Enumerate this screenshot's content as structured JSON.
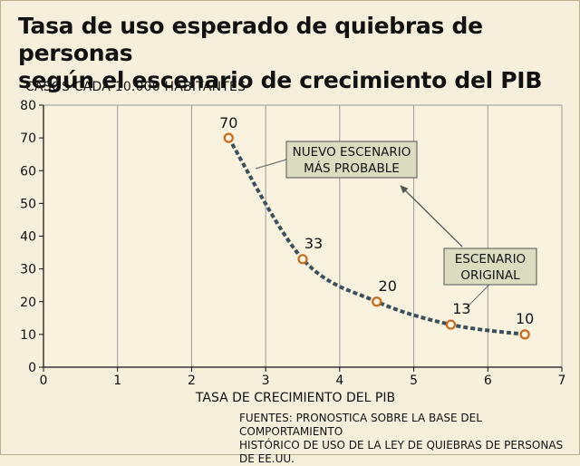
{
  "header": {
    "title_line1": "Tasa de uso esperado de quiebras de personas",
    "title_line2": "según el escenario de crecimiento del PIB",
    "units": "CASOS CADA 10.000 HABITANTES"
  },
  "footer": {
    "source_line1": "FUENTES: PRONOSTICA SOBRE LA BASE DEL COMPORTAMIENTO",
    "source_line2": "HISTÓRICO DE USO DE LA LEY DE QUIEBRAS DE PERSONAS DE EE.UU."
  },
  "colors": {
    "background": "#f6efdb",
    "plot_background": "#f8f2df",
    "grid": "#9a9a9a",
    "curve": "#3c4f5c",
    "marker": "#c8691e",
    "callout_fill": "#dcdcc0"
  },
  "annotations": {
    "new_scenario": [
      "NUEVO ESCENARIO",
      "MÁS PROBABLE"
    ],
    "original": [
      "ESCENARIO",
      "ORIGINAL"
    ]
  },
  "chart_data": {
    "type": "line",
    "title": "Tasa de uso esperado de quiebras de personas según el escenario de crecimiento del PIB",
    "xlabel": "TASA DE CRECIMIENTO DEL PIB",
    "ylabel": "CASOS CADA 10.000 HABITANTES",
    "xlim": [
      0,
      7
    ],
    "ylim": [
      0,
      80
    ],
    "xticks": [
      "0",
      "1",
      "2",
      "3",
      "4",
      "5",
      "6",
      "7"
    ],
    "yticks": [
      "0",
      "10",
      "20",
      "30",
      "40",
      "50",
      "60",
      "70",
      "80"
    ],
    "grid": "vertical",
    "line_style": "dashed",
    "points": [
      {
        "x": 2.5,
        "y": 70,
        "label": "70"
      },
      {
        "x": 3.5,
        "y": 33,
        "label": "33"
      },
      {
        "x": 4.5,
        "y": 20,
        "label": "20"
      },
      {
        "x": 5.5,
        "y": 13,
        "label": "13"
      },
      {
        "x": 6.5,
        "y": 10,
        "label": "10"
      }
    ]
  }
}
